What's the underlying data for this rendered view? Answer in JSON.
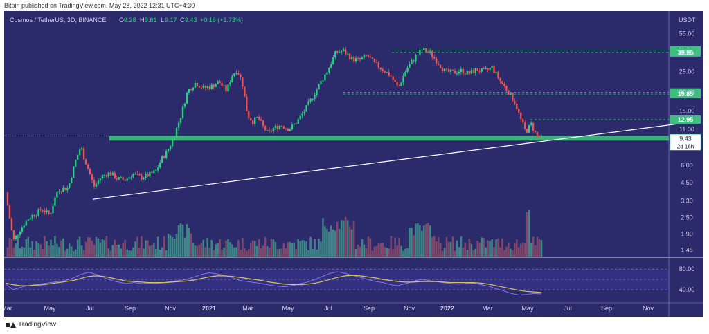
{
  "header": {
    "published": "Bitpin published on TradingView.com, May 28, 2022 12:31 UTC+4:30"
  },
  "footer": {
    "brand": "TradingView"
  },
  "colors": {
    "background": "#2b2a6b",
    "up": "#26d07c",
    "down": "#ef5350",
    "support_band": "#3fbf7f",
    "trendline": "#ffffff",
    "rsi_line": "#8e7cf0",
    "rsi_ma": "#d8c35a"
  },
  "chart_data": {
    "type": "candlestick",
    "title": "Cosmos / TetherUS, 3D, BINANCE",
    "ohlc": {
      "o_label": "O",
      "o": "9.28",
      "h_label": "H",
      "h": "9.61",
      "l_label": "L",
      "l": "9.17",
      "c_label": "C",
      "c": "9.43",
      "change": "+0.16 (+1.73%)"
    },
    "currency": "USDT",
    "scale": "log",
    "ylim": [
      1.3,
      62
    ],
    "y_ticks": [
      "55.00",
      "39.95",
      "29.00",
      "20.43",
      "15.00",
      "11.00",
      "6.00",
      "4.50",
      "3.30",
      "2.50",
      "1.90",
      "1.45"
    ],
    "y_ticks_values": [
      55,
      39.95,
      29,
      20.43,
      15,
      11,
      6,
      4.5,
      3.3,
      2.5,
      1.9,
      1.45
    ],
    "price_badges": [
      {
        "label": "41.51",
        "value": 41.51
      },
      {
        "label": "39.95",
        "value": 39.95
      },
      {
        "label": "20.43",
        "value": 20.43
      },
      {
        "label": "19.85",
        "value": 19.85
      },
      {
        "label": "12.95",
        "value": 12.95
      }
    ],
    "current_price": {
      "label": "9.43",
      "value": 9.43,
      "countdown": "2d 16h"
    },
    "x_labels": [
      "Mar",
      "May",
      "Jul",
      "Sep",
      "Nov",
      "2021",
      "Mar",
      "May",
      "Jul",
      "Sep",
      "Nov",
      "2022",
      "Mar",
      "May",
      "Jul",
      "Sep",
      "Nov"
    ],
    "price_path": [
      [
        0,
        3.8
      ],
      [
        0.03,
        1.7
      ],
      [
        0.06,
        2.1
      ],
      [
        0.09,
        2.5
      ],
      [
        0.12,
        2.7
      ],
      [
        0.14,
        2.9
      ],
      [
        0.17,
        2.6
      ],
      [
        0.2,
        4.0
      ],
      [
        0.24,
        4.1
      ],
      [
        0.27,
        6.6
      ],
      [
        0.29,
        8.3
      ],
      [
        0.3,
        7.0
      ],
      [
        0.32,
        5.5
      ],
      [
        0.34,
        4.2
      ],
      [
        0.37,
        5.0
      ],
      [
        0.4,
        5.3
      ],
      [
        0.43,
        4.8
      ],
      [
        0.46,
        4.7
      ],
      [
        0.49,
        5.2
      ],
      [
        0.52,
        4.9
      ],
      [
        0.55,
        5.1
      ],
      [
        0.58,
        5.5
      ],
      [
        0.6,
        6.7
      ],
      [
        0.62,
        7.5
      ],
      [
        0.64,
        9.0
      ],
      [
        0.67,
        13.0
      ],
      [
        0.7,
        21.0
      ],
      [
        0.73,
        24.0
      ],
      [
        0.76,
        22.0
      ],
      [
        0.79,
        22.5
      ],
      [
        0.82,
        24.5
      ],
      [
        0.85,
        21.0
      ],
      [
        0.87,
        27.0
      ],
      [
        0.89,
        30.0
      ],
      [
        0.91,
        24.0
      ],
      [
        0.93,
        14.0
      ],
      [
        0.95,
        12.5
      ],
      [
        0.97,
        13.5
      ],
      [
        0.99,
        11.5
      ],
      [
        1.01,
        10.2
      ],
      [
        1.03,
        11.2
      ],
      [
        1.06,
        11.8
      ],
      [
        1.09,
        11.0
      ],
      [
        1.12,
        12.5
      ],
      [
        1.15,
        15.0
      ],
      [
        1.18,
        19.0
      ],
      [
        1.21,
        24.0
      ],
      [
        1.24,
        30.0
      ],
      [
        1.27,
        40.0
      ],
      [
        1.3,
        41.0
      ],
      [
        1.33,
        36.0
      ],
      [
        1.36,
        35.0
      ],
      [
        1.39,
        38.0
      ],
      [
        1.42,
        33.0
      ],
      [
        1.45,
        30.0
      ],
      [
        1.48,
        27.0
      ],
      [
        1.51,
        22.0
      ],
      [
        1.54,
        30.0
      ],
      [
        1.57,
        36.0
      ],
      [
        1.6,
        42.0
      ],
      [
        1.63,
        40.0
      ],
      [
        1.66,
        34.0
      ],
      [
        1.69,
        29.0
      ],
      [
        1.72,
        28.5
      ],
      [
        1.75,
        29.5
      ],
      [
        1.78,
        28.0
      ],
      [
        1.81,
        30.0
      ],
      [
        1.84,
        29.0
      ],
      [
        1.87,
        31.0
      ],
      [
        1.9,
        25.0
      ],
      [
        1.93,
        21.0
      ],
      [
        1.96,
        17.0
      ],
      [
        1.98,
        13.0
      ],
      [
        2.0,
        10.5
      ],
      [
        2.02,
        12.0
      ],
      [
        2.04,
        10.0
      ],
      [
        2.06,
        9.43
      ]
    ],
    "rsi": {
      "upper_label": "80.00",
      "lower_label": "40.00",
      "upper": 80,
      "lower": 40,
      "mid": 60,
      "range": [
        20,
        95
      ],
      "values": [
        52,
        40,
        45,
        48,
        50,
        52,
        54,
        56,
        58,
        63,
        70,
        74,
        70,
        64,
        58,
        55,
        52,
        54,
        52,
        53,
        52,
        54,
        56,
        58,
        60,
        65,
        70,
        73,
        71,
        68,
        64,
        58,
        56,
        54,
        52,
        49,
        47,
        46,
        48,
        52,
        55,
        60,
        66,
        72,
        75,
        72,
        68,
        64,
        60,
        56,
        54,
        50,
        48,
        52,
        56,
        60,
        58,
        56,
        54,
        52,
        51,
        52,
        53,
        50,
        47,
        42,
        38,
        33,
        30,
        31,
        33,
        32
      ],
      "ma_values": [
        53,
        50,
        48,
        48,
        49,
        50,
        52,
        54,
        56,
        58,
        62,
        66,
        67,
        66,
        63,
        60,
        57,
        56,
        55,
        54,
        54,
        54,
        55,
        56,
        57,
        59,
        62,
        65,
        67,
        67,
        66,
        64,
        62,
        60,
        58,
        55,
        53,
        51,
        50,
        50,
        51,
        53,
        56,
        60,
        64,
        67,
        68,
        67,
        65,
        63,
        60,
        58,
        56,
        55,
        55,
        56,
        56,
        56,
        55,
        54,
        54,
        54,
        54,
        53,
        51,
        48,
        45,
        42,
        39,
        37,
        36,
        35
      ]
    }
  }
}
